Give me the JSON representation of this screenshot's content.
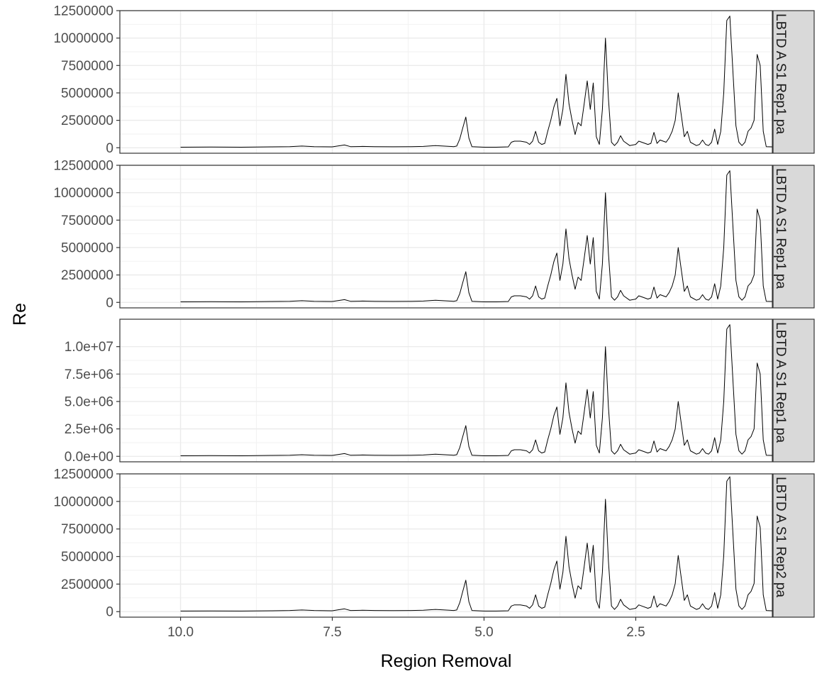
{
  "chart_data": {
    "type": "line",
    "xlabel": "Region Removal",
    "ylabel": "Re",
    "x_reversed": true,
    "xlim": [
      11.0,
      0.25
    ],
    "x_ticks": [
      {
        "value": 10.0,
        "label": "10.0"
      },
      {
        "value": 7.5,
        "label": "7.5"
      },
      {
        "value": 5.0,
        "label": "5.0"
      },
      {
        "value": 2.5,
        "label": "2.5"
      }
    ],
    "grid": true,
    "line_color": "#000000",
    "baseline_points": [
      [
        10.0,
        0.05
      ],
      [
        9.5,
        0.06
      ],
      [
        9.0,
        0.05
      ],
      [
        8.5,
        0.08
      ],
      [
        8.2,
        0.1
      ],
      [
        8.0,
        0.15
      ],
      [
        7.8,
        0.1
      ],
      [
        7.5,
        0.08
      ],
      [
        7.3,
        0.25
      ],
      [
        7.2,
        0.1
      ],
      [
        7.0,
        0.12
      ],
      [
        6.8,
        0.1
      ],
      [
        6.5,
        0.09
      ],
      [
        6.2,
        0.1
      ],
      [
        6.0,
        0.12
      ],
      [
        5.8,
        0.2
      ],
      [
        5.5,
        0.1
      ],
      [
        5.45,
        0.15
      ],
      [
        5.4,
        0.8
      ],
      [
        5.35,
        1.8
      ],
      [
        5.3,
        2.8
      ],
      [
        5.25,
        0.9
      ],
      [
        5.2,
        0.1
      ],
      [
        5.0,
        0.05
      ],
      [
        4.8,
        0.05
      ],
      [
        4.6,
        0.08
      ],
      [
        4.55,
        0.5
      ],
      [
        4.5,
        0.6
      ],
      [
        4.4,
        0.6
      ],
      [
        4.3,
        0.5
      ],
      [
        4.25,
        0.3
      ],
      [
        4.2,
        0.6
      ],
      [
        4.15,
        1.5
      ],
      [
        4.1,
        0.5
      ],
      [
        4.05,
        0.3
      ],
      [
        4.0,
        0.4
      ],
      [
        3.95,
        1.5
      ],
      [
        3.9,
        2.5
      ],
      [
        3.85,
        3.7
      ],
      [
        3.8,
        4.5
      ],
      [
        3.75,
        2.0
      ],
      [
        3.7,
        3.5
      ],
      [
        3.65,
        6.7
      ],
      [
        3.6,
        4.0
      ],
      [
        3.55,
        2.5
      ],
      [
        3.5,
        1.2
      ],
      [
        3.45,
        2.3
      ],
      [
        3.4,
        2.0
      ],
      [
        3.35,
        4.0
      ],
      [
        3.3,
        6.1
      ],
      [
        3.25,
        3.5
      ],
      [
        3.2,
        5.9
      ],
      [
        3.15,
        1.0
      ],
      [
        3.1,
        0.3
      ],
      [
        3.05,
        3.5
      ],
      [
        3.0,
        10.0
      ],
      [
        2.95,
        4.5
      ],
      [
        2.9,
        0.5
      ],
      [
        2.85,
        0.2
      ],
      [
        2.8,
        0.5
      ],
      [
        2.75,
        1.1
      ],
      [
        2.7,
        0.6
      ],
      [
        2.6,
        0.2
      ],
      [
        2.5,
        0.3
      ],
      [
        2.45,
        0.6
      ],
      [
        2.4,
        0.5
      ],
      [
        2.3,
        0.3
      ],
      [
        2.25,
        0.4
      ],
      [
        2.2,
        1.4
      ],
      [
        2.15,
        0.4
      ],
      [
        2.1,
        0.7
      ],
      [
        2.0,
        0.5
      ],
      [
        1.95,
        0.9
      ],
      [
        1.9,
        1.5
      ],
      [
        1.85,
        2.5
      ],
      [
        1.8,
        5.0
      ],
      [
        1.75,
        3.0
      ],
      [
        1.7,
        1.0
      ],
      [
        1.65,
        1.5
      ],
      [
        1.6,
        0.5
      ],
      [
        1.5,
        0.2
      ],
      [
        1.45,
        0.3
      ],
      [
        1.4,
        0.7
      ],
      [
        1.35,
        0.3
      ],
      [
        1.3,
        0.2
      ],
      [
        1.25,
        0.5
      ],
      [
        1.2,
        1.7
      ],
      [
        1.15,
        0.3
      ],
      [
        1.1,
        1.5
      ],
      [
        1.05,
        5.0
      ],
      [
        1.0,
        11.6
      ],
      [
        0.95,
        12.0
      ],
      [
        0.9,
        7.0
      ],
      [
        0.85,
        2.0
      ],
      [
        0.8,
        0.5
      ],
      [
        0.75,
        0.2
      ],
      [
        0.7,
        0.5
      ],
      [
        0.65,
        1.5
      ],
      [
        0.6,
        1.8
      ],
      [
        0.55,
        2.5
      ],
      [
        0.5,
        8.5
      ],
      [
        0.45,
        7.5
      ],
      [
        0.4,
        1.5
      ],
      [
        0.35,
        0.1
      ],
      [
        0.25,
        0.08
      ],
      [
        0.1,
        0.1
      ]
    ],
    "panels": [
      {
        "strip": "LBTD A S1 Rep1 pa",
        "ylim": [
          -500000,
          12500000
        ],
        "y_ticks": [
          {
            "value": 0,
            "label": "0"
          },
          {
            "value": 2500000,
            "label": "2500000"
          },
          {
            "value": 5000000,
            "label": "5000000"
          },
          {
            "value": 7500000,
            "label": "7500000"
          },
          {
            "value": 10000000,
            "label": "10000000"
          },
          {
            "value": 12500000,
            "label": "12500000"
          }
        ],
        "peak_scale": 1.0
      },
      {
        "strip": "LBTD A S1 Rep1 pa",
        "ylim": [
          -500000,
          12500000
        ],
        "y_ticks": [
          {
            "value": 0,
            "label": "0"
          },
          {
            "value": 2500000,
            "label": "2500000"
          },
          {
            "value": 5000000,
            "label": "5000000"
          },
          {
            "value": 7500000,
            "label": "7500000"
          },
          {
            "value": 10000000,
            "label": "10000000"
          },
          {
            "value": 12500000,
            "label": "12500000"
          }
        ],
        "peak_scale": 1.0
      },
      {
        "strip": "LBTD A S1 Rep1 pa",
        "ylim": [
          -500000,
          12500000
        ],
        "y_ticks": [
          {
            "value": 0,
            "label": "0.0e+00"
          },
          {
            "value": 2500000,
            "label": "2.5e+06"
          },
          {
            "value": 5000000,
            "label": "5.0e+06"
          },
          {
            "value": 7500000,
            "label": "7.5e+06"
          },
          {
            "value": 10000000,
            "label": "1.0e+07"
          }
        ],
        "peak_scale": 1.0
      },
      {
        "strip": "LBTD A S1 Rep2 pa",
        "ylim": [
          -500000,
          12500000
        ],
        "y_ticks": [
          {
            "value": 0,
            "label": "0"
          },
          {
            "value": 2500000,
            "label": "2500000"
          },
          {
            "value": 5000000,
            "label": "5000000"
          },
          {
            "value": 7500000,
            "label": "7500000"
          },
          {
            "value": 10000000,
            "label": "10000000"
          },
          {
            "value": 12500000,
            "label": "12500000"
          }
        ],
        "peak_scale": 1.02
      }
    ]
  }
}
